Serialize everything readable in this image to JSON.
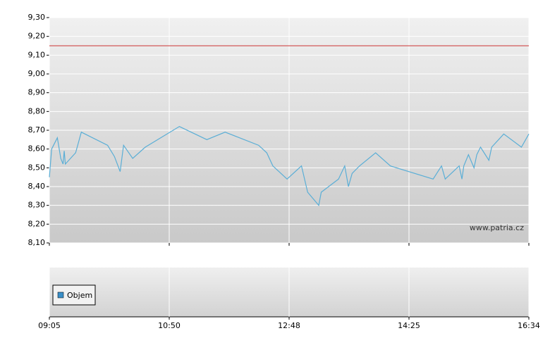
{
  "chart_data": {
    "type": "line",
    "x": [
      "09:05",
      "09:07",
      "09:12",
      "09:15",
      "09:17",
      "09:18",
      "09:19",
      "09:28",
      "09:33",
      "09:56",
      "10:02",
      "10:07",
      "10:10",
      "10:18",
      "10:29",
      "11:00",
      "11:27",
      "11:45",
      "12:18",
      "12:26",
      "12:32",
      "12:46",
      "12:58",
      "13:03",
      "13:12",
      "13:14",
      "13:28",
      "13:33",
      "13:36",
      "13:39",
      "13:45",
      "13:58",
      "14:10",
      "14:51",
      "15:00",
      "15:04",
      "15:19",
      "15:22",
      "15:24",
      "15:29",
      "15:35",
      "15:38",
      "15:42",
      "15:51",
      "15:54",
      "16:07",
      "16:26",
      "16:34"
    ],
    "series": [
      {
        "color": "#5aaed6",
        "values": [
          8.45,
          8.6,
          8.66,
          8.55,
          8.52,
          8.59,
          8.52,
          8.58,
          8.69,
          8.62,
          8.56,
          8.48,
          8.62,
          8.55,
          8.61,
          8.72,
          8.65,
          8.69,
          8.62,
          8.58,
          8.51,
          8.44,
          8.51,
          8.37,
          8.3,
          8.37,
          8.44,
          8.51,
          8.4,
          8.47,
          8.51,
          8.58,
          8.51,
          8.44,
          8.51,
          8.44,
          8.51,
          8.44,
          8.51,
          8.57,
          8.5,
          8.57,
          8.61,
          8.54,
          8.61,
          8.68,
          8.61,
          8.68
        ]
      }
    ],
    "reference": {
      "value": 9.15,
      "color": "#cc3333"
    },
    "ylim": [
      8.1,
      9.3
    ],
    "yticks": [
      {
        "value": 8.1,
        "label": "8,10"
      },
      {
        "value": 8.2,
        "label": "8,20"
      },
      {
        "value": 8.3,
        "label": "8,30"
      },
      {
        "value": 8.4,
        "label": "8,40"
      },
      {
        "value": 8.5,
        "label": "8,50"
      },
      {
        "value": 8.6,
        "label": "8,60"
      },
      {
        "value": 8.7,
        "label": "8,70"
      },
      {
        "value": 8.8,
        "label": "8,80"
      },
      {
        "value": 8.9,
        "label": "8,90"
      },
      {
        "value": 9.0,
        "label": "9,00"
      },
      {
        "value": 9.1,
        "label": "9,10"
      },
      {
        "value": 9.2,
        "label": "9,20"
      },
      {
        "value": 9.3,
        "label": "9,30"
      }
    ],
    "xticks": [
      "09:05",
      "10:50",
      "12:48",
      "14:25",
      "16:34"
    ],
    "grid": true,
    "watermark": "www.patria.cz",
    "volume": {
      "name": "Objem",
      "color": "#3a8fc8"
    }
  }
}
